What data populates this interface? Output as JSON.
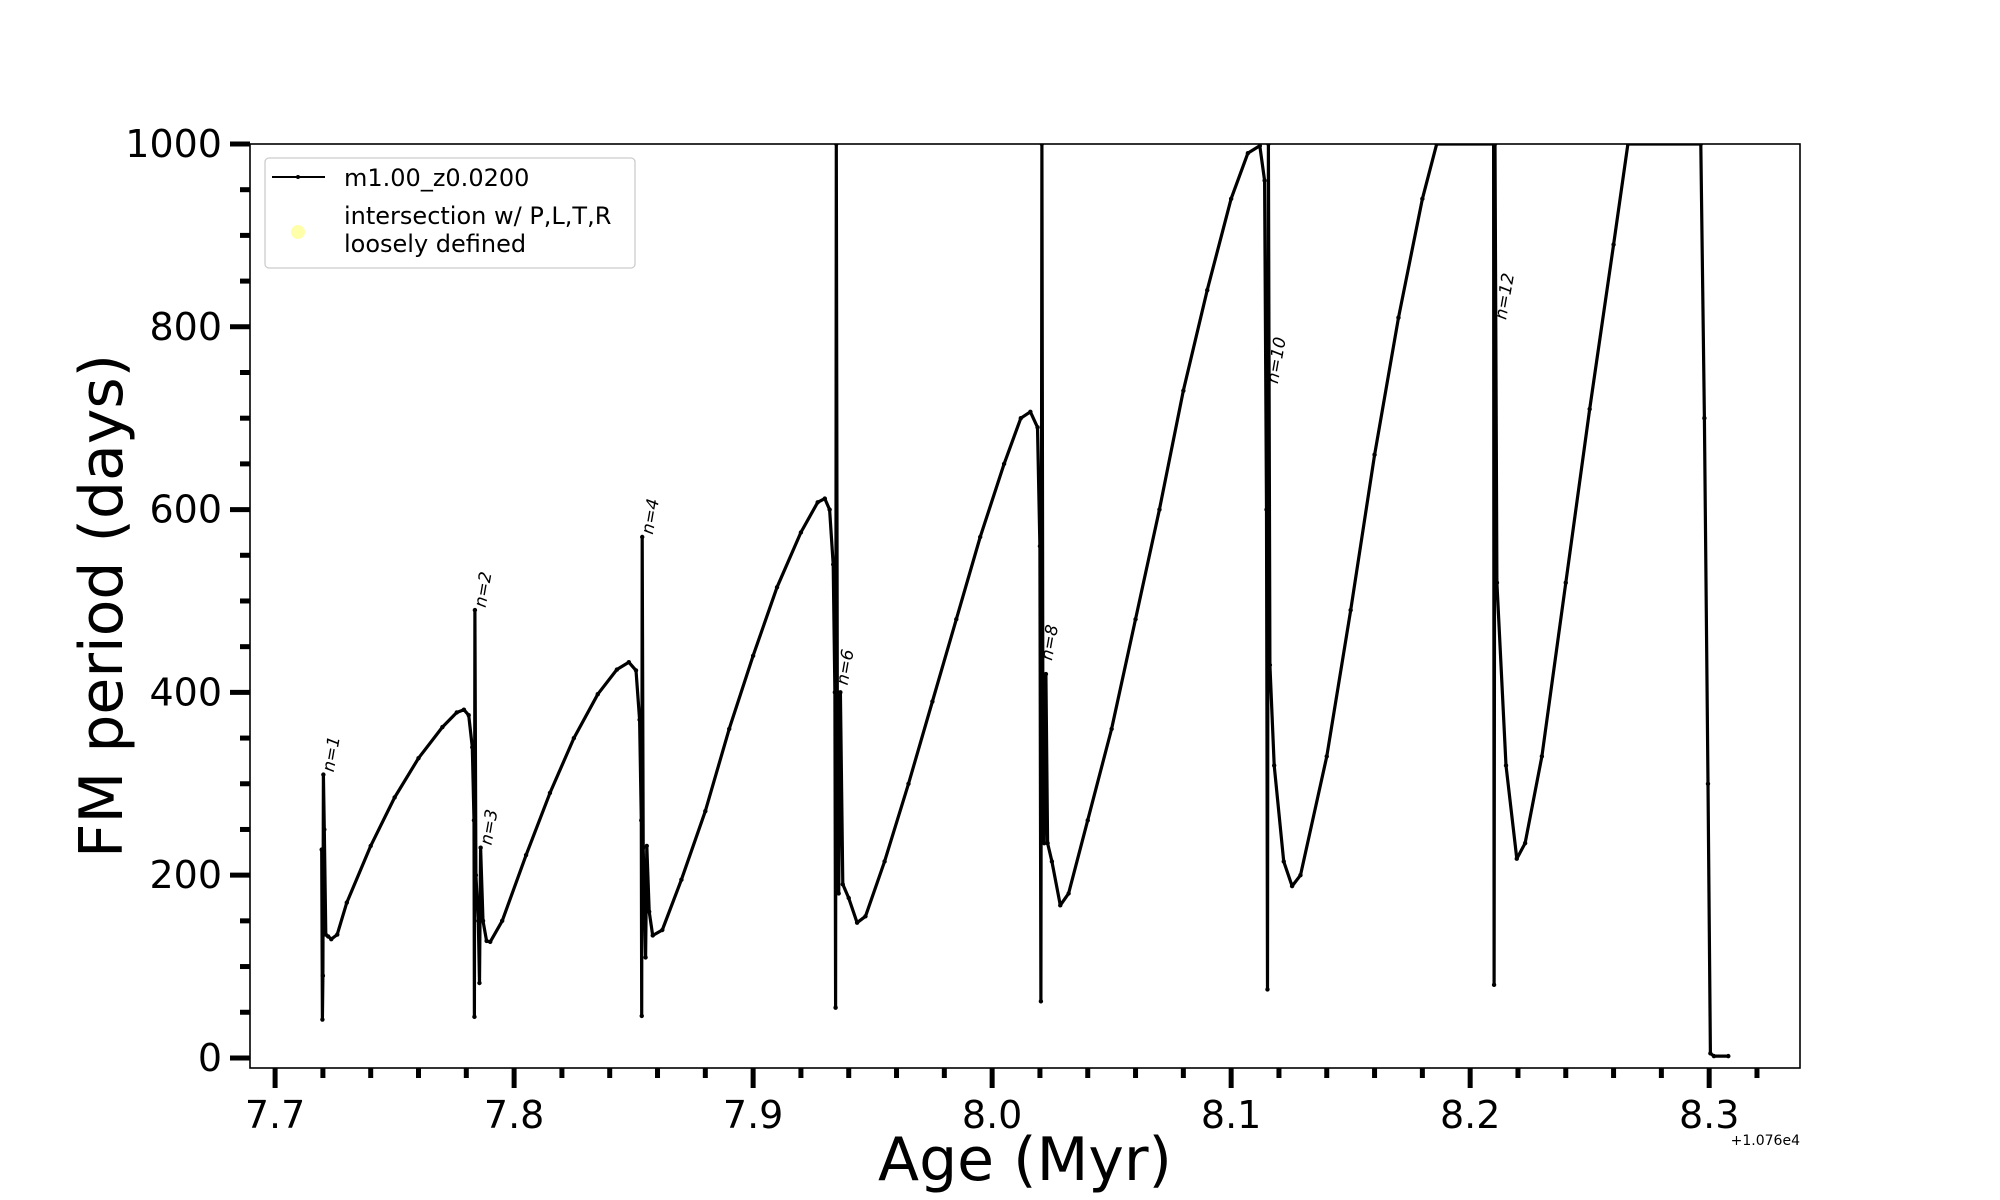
{
  "chart_data": {
    "type": "line",
    "title": "",
    "xlabel": "Age (Myr)",
    "ylabel": "FM period (days)",
    "x_offset_label": "+1.076e4",
    "xlim": [
      7.6895,
      8.338
    ],
    "ylim": [
      -11,
      1000
    ],
    "xticks": [
      7.7,
      7.8,
      7.9,
      8.0,
      8.1,
      8.2,
      8.3
    ],
    "xtick_labels": [
      "7.7",
      "7.8",
      "7.9",
      "8.0",
      "8.1",
      "8.2",
      "8.3"
    ],
    "x_minor_step": 0.02,
    "yticks": [
      0,
      200,
      400,
      600,
      800,
      1000
    ],
    "ytick_labels": [
      "0",
      "200",
      "400",
      "600",
      "800",
      "1000"
    ],
    "y_minor_step": 50,
    "grid": false,
    "legend": {
      "position": "top-left",
      "entries": [
        {
          "label": "m1.00_z0.0200",
          "marker": "line-dot",
          "color": "#000000"
        },
        {
          "label_lines": [
            "intersection w/ P,L,T,R",
            "loosely defined"
          ],
          "marker": "circle",
          "color": "#ffffaa"
        }
      ]
    },
    "series": [
      {
        "name": "m1.00_z0.0200",
        "color": "#000000",
        "points": [
          [
            7.7195,
            228
          ],
          [
            7.7198,
            42
          ],
          [
            7.72,
            90
          ],
          [
            7.7202,
            310
          ],
          [
            7.7206,
            250
          ],
          [
            7.7212,
            135
          ],
          [
            7.7222,
            133
          ],
          [
            7.7235,
            130
          ],
          [
            7.726,
            135
          ],
          [
            7.73,
            170
          ],
          [
            7.74,
            232
          ],
          [
            7.75,
            285
          ],
          [
            7.76,
            328
          ],
          [
            7.77,
            362
          ],
          [
            7.776,
            378
          ],
          [
            7.779,
            381
          ],
          [
            7.781,
            375
          ],
          [
            7.7825,
            340
          ],
          [
            7.7832,
            260
          ],
          [
            7.7834,
            45
          ],
          [
            7.7836,
            490
          ],
          [
            7.784,
            200
          ],
          [
            7.785,
            150
          ],
          [
            7.7855,
            82
          ],
          [
            7.786,
            230
          ],
          [
            7.787,
            150
          ],
          [
            7.7885,
            128
          ],
          [
            7.79,
            127
          ],
          [
            7.795,
            150
          ],
          [
            7.805,
            222
          ],
          [
            7.815,
            290
          ],
          [
            7.825,
            350
          ],
          [
            7.835,
            398
          ],
          [
            7.843,
            425
          ],
          [
            7.848,
            433
          ],
          [
            7.851,
            424
          ],
          [
            7.8525,
            370
          ],
          [
            7.8532,
            260
          ],
          [
            7.8534,
            46
          ],
          [
            7.8536,
            570
          ],
          [
            7.854,
            230
          ],
          [
            7.855,
            110
          ],
          [
            7.8555,
            232
          ],
          [
            7.8565,
            160
          ],
          [
            7.858,
            134
          ],
          [
            7.862,
            140
          ],
          [
            7.87,
            195
          ],
          [
            7.88,
            270
          ],
          [
            7.89,
            360
          ],
          [
            7.9,
            440
          ],
          [
            7.91,
            515
          ],
          [
            7.92,
            575
          ],
          [
            7.927,
            608
          ],
          [
            7.93,
            612
          ],
          [
            7.932,
            600
          ],
          [
            7.9335,
            540
          ],
          [
            7.9342,
            400
          ],
          [
            7.9345,
            55
          ],
          [
            7.9348,
            1000
          ],
          [
            7.9352,
            400
          ],
          [
            7.9358,
            180
          ],
          [
            7.9365,
            400
          ],
          [
            7.9375,
            190
          ],
          [
            7.94,
            175
          ],
          [
            7.9435,
            148
          ],
          [
            7.947,
            155
          ],
          [
            7.955,
            215
          ],
          [
            7.965,
            300
          ],
          [
            7.975,
            390
          ],
          [
            7.985,
            480
          ],
          [
            7.995,
            570
          ],
          [
            8.005,
            650
          ],
          [
            8.012,
            700
          ],
          [
            8.016,
            707
          ],
          [
            8.019,
            690
          ],
          [
            8.02,
            560
          ],
          [
            8.0204,
            62
          ],
          [
            8.0208,
            1000
          ],
          [
            8.0212,
            420
          ],
          [
            8.0218,
            235
          ],
          [
            8.0225,
            420
          ],
          [
            8.0232,
            235
          ],
          [
            8.025,
            215
          ],
          [
            8.0285,
            167
          ],
          [
            8.032,
            180
          ],
          [
            8.04,
            260
          ],
          [
            8.05,
            360
          ],
          [
            8.06,
            480
          ],
          [
            8.07,
            600
          ],
          [
            8.08,
            730
          ],
          [
            8.09,
            840
          ],
          [
            8.1,
            940
          ],
          [
            8.107,
            990
          ],
          [
            8.112,
            998
          ],
          [
            8.114,
            960
          ],
          [
            8.1148,
            600
          ],
          [
            8.1152,
            75
          ],
          [
            8.1156,
            1000
          ],
          [
            8.1162,
            430
          ],
          [
            8.118,
            320
          ],
          [
            8.122,
            215
          ],
          [
            8.1255,
            188
          ],
          [
            8.129,
            200
          ],
          [
            8.14,
            330
          ],
          [
            8.15,
            490
          ],
          [
            8.16,
            660
          ],
          [
            8.17,
            810
          ],
          [
            8.18,
            940
          ],
          [
            8.186,
            1000
          ],
          [
            8.2098,
            1000
          ],
          [
            8.21,
            80
          ],
          [
            8.2104,
            1000
          ],
          [
            8.2112,
            520
          ],
          [
            8.215,
            320
          ],
          [
            8.2195,
            218
          ],
          [
            8.223,
            235
          ],
          [
            8.23,
            330
          ],
          [
            8.24,
            520
          ],
          [
            8.25,
            710
          ],
          [
            8.26,
            890
          ],
          [
            8.266,
            1000
          ],
          [
            8.2965,
            1000
          ],
          [
            8.298,
            700
          ],
          [
            8.2995,
            300
          ],
          [
            8.3005,
            5
          ],
          [
            8.302,
            2
          ],
          [
            8.308,
            2
          ]
        ]
      }
    ],
    "annotations": [
      {
        "text": "n=1",
        "x": 7.722,
        "y": 310
      },
      {
        "text": "n=2",
        "x": 7.7855,
        "y": 490
      },
      {
        "text": "n=3",
        "x": 7.788,
        "y": 230
      },
      {
        "text": "n=4",
        "x": 7.8555,
        "y": 570
      },
      {
        "text": "n=6",
        "x": 7.937,
        "y": 405
      },
      {
        "text": "n=8",
        "x": 8.0225,
        "y": 432
      },
      {
        "text": "n=10",
        "x": 8.117,
        "y": 735
      },
      {
        "text": "n=12",
        "x": 8.2125,
        "y": 805
      }
    ]
  }
}
